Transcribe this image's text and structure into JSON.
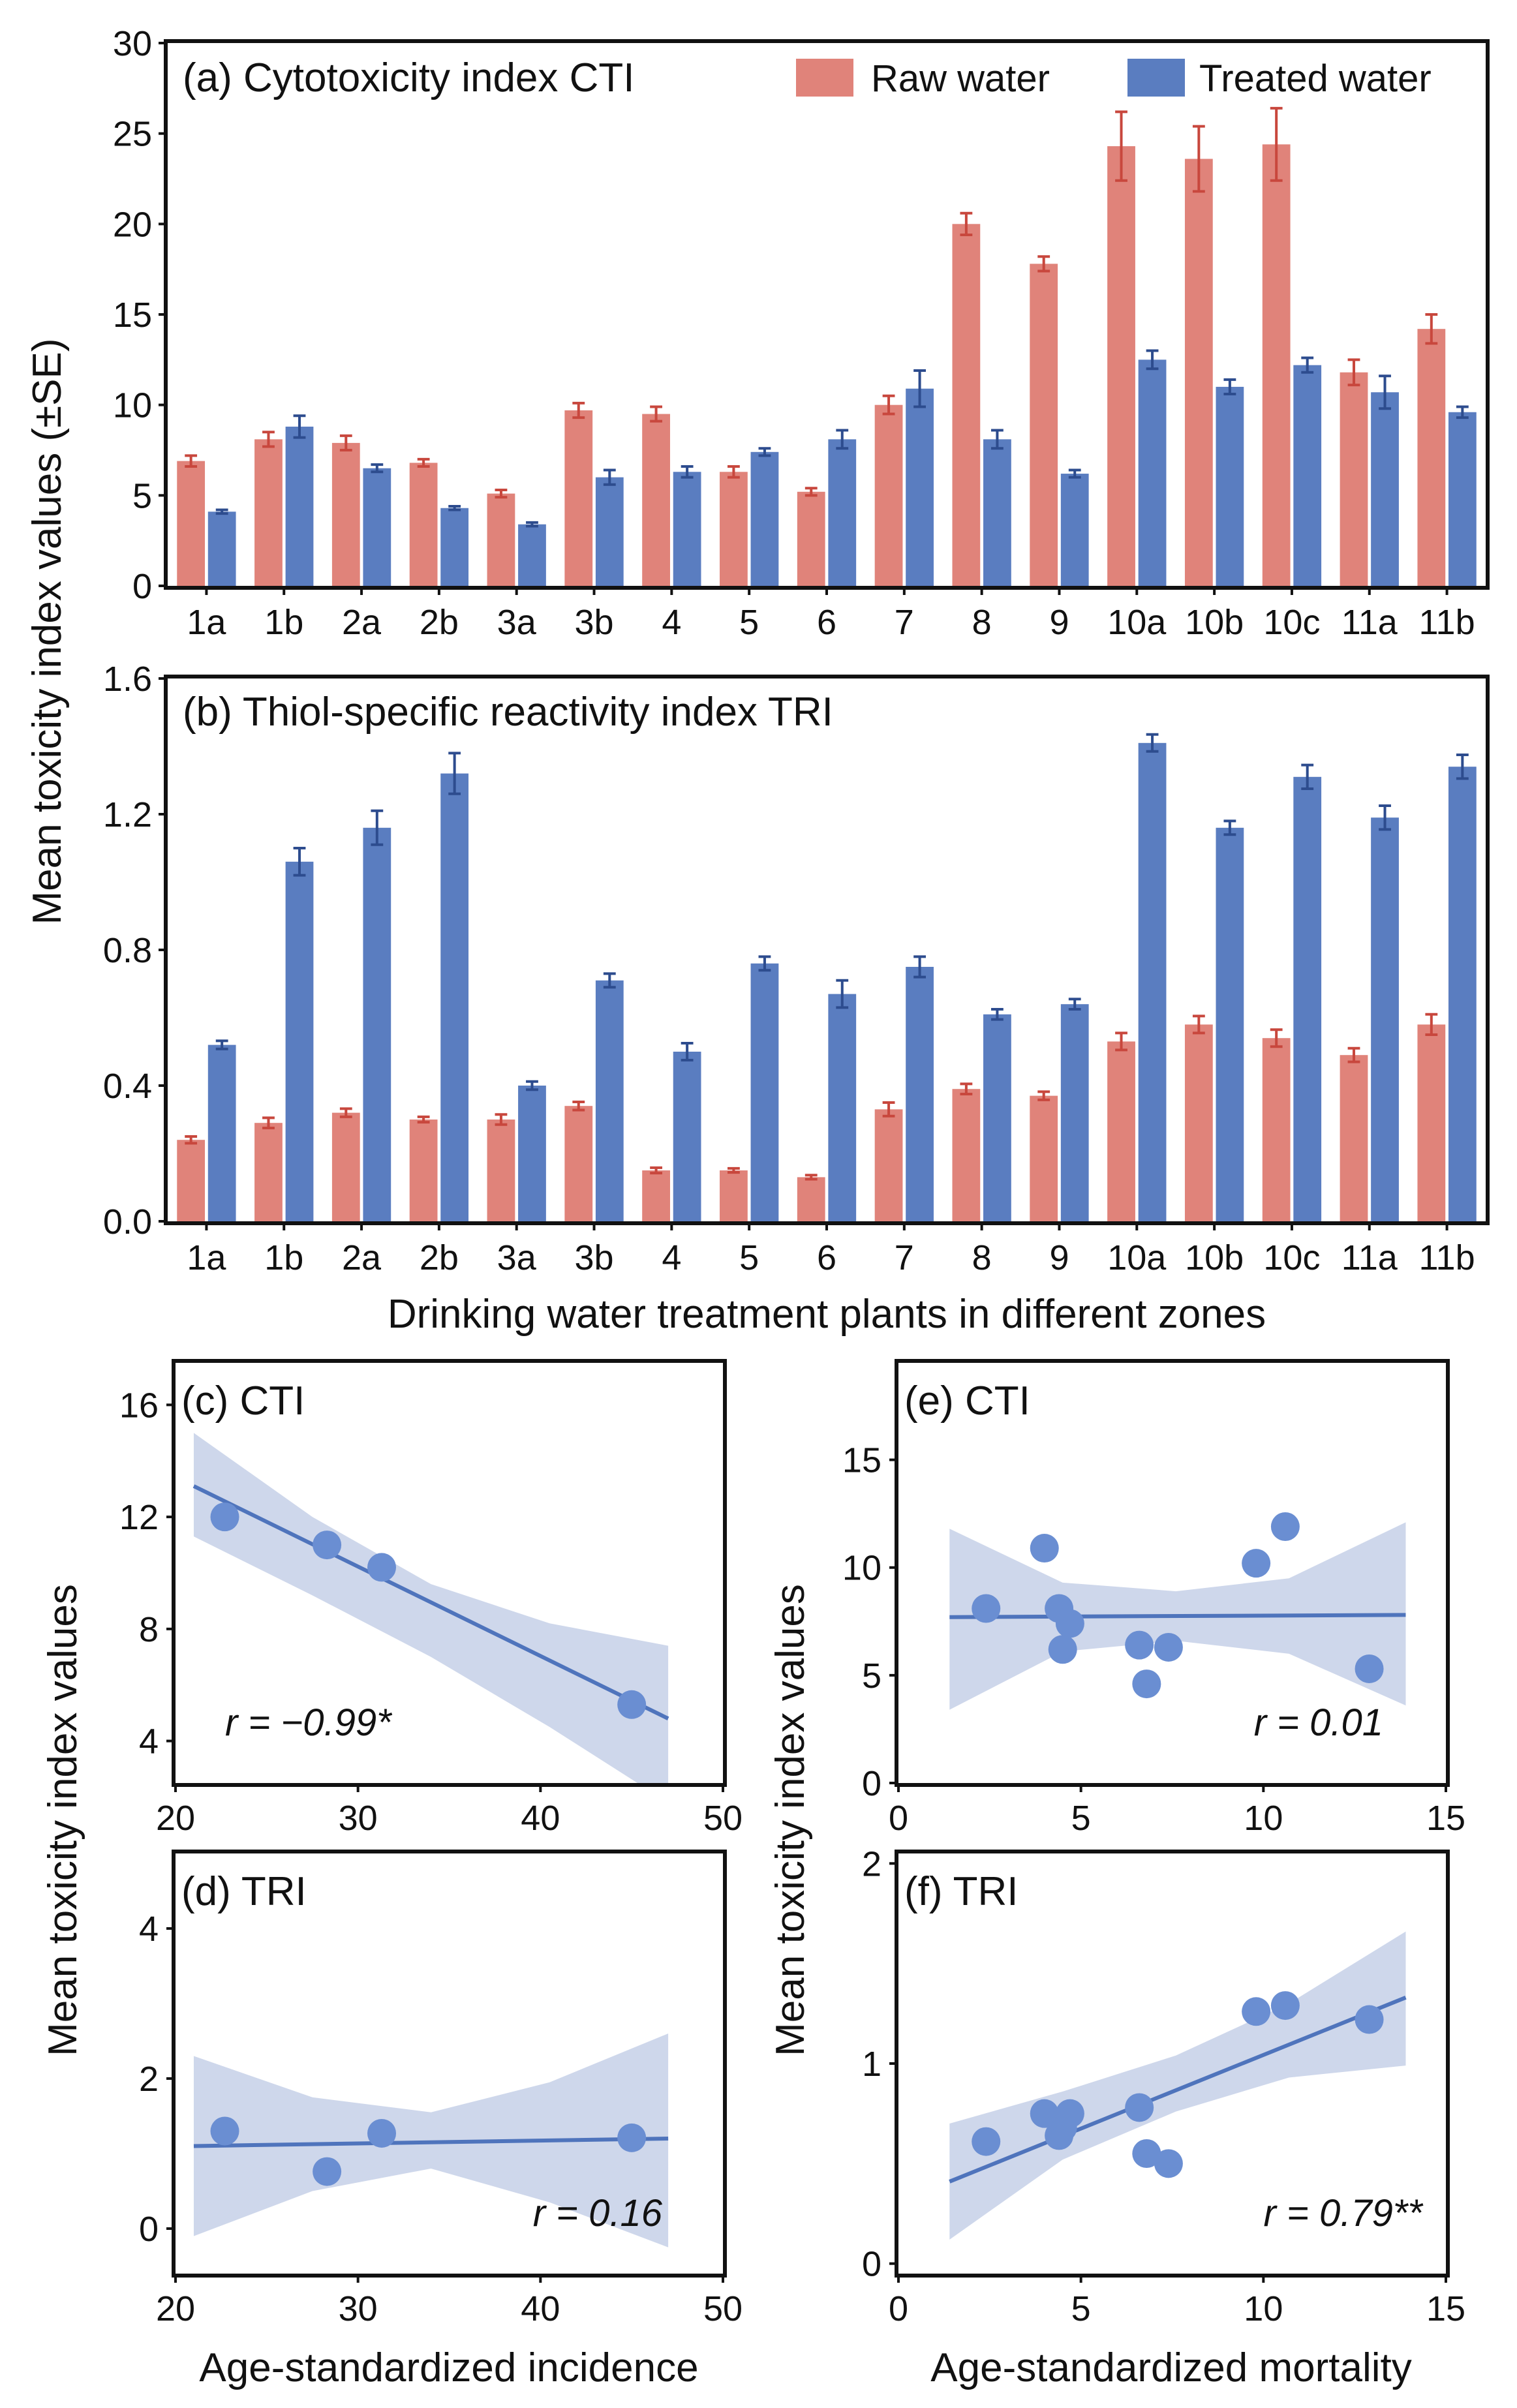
{
  "colors": {
    "raw": "#E0837A",
    "treated": "#5A7DC0",
    "raw_err": "#C8473D",
    "treated_err": "#2D4C8E",
    "band": "#C5D0E7",
    "point": "#6A8ED2",
    "line": "#4F74BC"
  },
  "chart_data": [
    {
      "id": "a",
      "type": "bar",
      "title": "(a) Cytotoxicity index CTI",
      "ylabel": "Mean toxicity index values (±SE)",
      "xlabel": "",
      "ylim": [
        0,
        30
      ],
      "yticks": [
        0,
        5,
        10,
        15,
        20,
        25,
        30
      ],
      "categories": [
        "1a",
        "1b",
        "2a",
        "2b",
        "3a",
        "3b",
        "4",
        "5",
        "6",
        "7",
        "8",
        "9",
        "10a",
        "10b",
        "10c",
        "11a",
        "11b"
      ],
      "legend": [
        "Raw water",
        "Treated water"
      ],
      "series": [
        {
          "name": "Raw water",
          "values": [
            6.9,
            8.1,
            7.9,
            6.8,
            5.1,
            9.7,
            9.5,
            6.3,
            5.2,
            10.0,
            20.0,
            17.8,
            24.3,
            23.6,
            24.4,
            11.8,
            14.2
          ],
          "errors": [
            0.3,
            0.4,
            0.4,
            0.2,
            0.2,
            0.4,
            0.4,
            0.3,
            0.2,
            0.5,
            0.6,
            0.4,
            1.9,
            1.8,
            2.0,
            0.7,
            0.8
          ]
        },
        {
          "name": "Treated water",
          "values": [
            4.1,
            8.8,
            6.5,
            4.3,
            3.4,
            6.0,
            6.3,
            7.4,
            8.1,
            10.9,
            8.1,
            6.2,
            12.5,
            11.0,
            12.2,
            10.7,
            9.6
          ],
          "errors": [
            0.1,
            0.6,
            0.2,
            0.1,
            0.1,
            0.4,
            0.3,
            0.2,
            0.5,
            1.0,
            0.5,
            0.2,
            0.5,
            0.4,
            0.4,
            0.9,
            0.3
          ]
        }
      ]
    },
    {
      "id": "b",
      "type": "bar",
      "title": "(b) Thiol-specific reactivity index TRI",
      "xlabel": "Drinking water treatment plants in different zones",
      "ylabel": "",
      "ylim": [
        0,
        1.6
      ],
      "yticks": [
        "0.0",
        "0.4",
        "0.8",
        "1.2",
        "1.6"
      ],
      "categories": [
        "1a",
        "1b",
        "2a",
        "2b",
        "3a",
        "3b",
        "4",
        "5",
        "6",
        "7",
        "8",
        "9",
        "10a",
        "10b",
        "10c",
        "11a",
        "11b"
      ],
      "series": [
        {
          "name": "Raw water",
          "values": [
            0.24,
            0.29,
            0.32,
            0.3,
            0.3,
            0.34,
            0.15,
            0.15,
            0.13,
            0.33,
            0.39,
            0.37,
            0.53,
            0.58,
            0.54,
            0.49,
            0.58
          ],
          "errors": [
            0.01,
            0.015,
            0.012,
            0.008,
            0.015,
            0.012,
            0.008,
            0.006,
            0.006,
            0.02,
            0.015,
            0.012,
            0.025,
            0.025,
            0.025,
            0.02,
            0.03
          ]
        },
        {
          "name": "Treated water",
          "values": [
            0.52,
            1.06,
            1.16,
            1.32,
            0.4,
            0.71,
            0.5,
            0.76,
            0.67,
            0.75,
            0.61,
            0.64,
            1.41,
            1.16,
            1.31,
            1.19,
            1.34
          ],
          "errors": [
            0.012,
            0.04,
            0.05,
            0.06,
            0.012,
            0.02,
            0.025,
            0.02,
            0.04,
            0.03,
            0.015,
            0.015,
            0.025,
            0.02,
            0.035,
            0.035,
            0.035
          ]
        }
      ]
    },
    {
      "id": "c",
      "type": "scatter",
      "title": "(c) CTI",
      "xlim": [
        20,
        50
      ],
      "ylim": [
        2.5,
        17.5
      ],
      "xticks": [
        20,
        30,
        40,
        50
      ],
      "yticks": [
        4,
        8,
        12,
        16
      ],
      "x": [
        22.7,
        28.3,
        31.3,
        45.0
      ],
      "y": [
        12.0,
        11.0,
        10.2,
        5.3
      ],
      "fit": {
        "x": [
          21.0,
          47.0
        ],
        "y": [
          13.1,
          4.8
        ]
      },
      "band": {
        "x": [
          21.0,
          27.5,
          34.0,
          40.5,
          47.0
        ],
        "lower": [
          11.3,
          9.2,
          7.0,
          4.5,
          1.8
        ],
        "upper": [
          15.0,
          12.0,
          9.6,
          8.2,
          7.4
        ]
      },
      "annotation": "r = −0.99*"
    },
    {
      "id": "d",
      "type": "scatter",
      "title": "(d) TRI",
      "xlabel": "Age-standardized incidence",
      "xlim": [
        20,
        50
      ],
      "ylim": [
        -0.6,
        5.0
      ],
      "xticks": [
        20,
        30,
        40,
        50
      ],
      "yticks": [
        0,
        2,
        4
      ],
      "x": [
        22.7,
        28.3,
        31.3,
        45.0
      ],
      "y": [
        1.3,
        0.76,
        1.27,
        1.21
      ],
      "fit": {
        "x": [
          21.0,
          47.0
        ],
        "y": [
          1.1,
          1.2
        ]
      },
      "band": {
        "x": [
          21.0,
          27.5,
          34.0,
          40.5,
          47.0
        ],
        "lower": [
          -0.1,
          0.5,
          0.8,
          0.35,
          -0.25
        ],
        "upper": [
          2.3,
          1.75,
          1.55,
          1.95,
          2.6
        ]
      },
      "annotation": "r = 0.16"
    },
    {
      "id": "e",
      "type": "scatter",
      "title": "(e) CTI",
      "xlim": [
        0,
        15
      ],
      "ylim": [
        0,
        19.5
      ],
      "xticks": [
        0,
        5,
        10,
        15
      ],
      "yticks": [
        0,
        5,
        10,
        15
      ],
      "x": [
        2.4,
        4.0,
        4.4,
        4.5,
        4.7,
        6.6,
        6.8,
        7.4,
        9.8,
        10.6,
        12.9
      ],
      "y": [
        8.1,
        10.9,
        8.1,
        6.2,
        7.4,
        6.4,
        4.6,
        6.3,
        10.2,
        11.9,
        5.3
      ],
      "fit": {
        "x": [
          1.4,
          13.9
        ],
        "y": [
          7.7,
          7.8
        ]
      },
      "band": {
        "x": [
          1.4,
          4.5,
          7.6,
          10.7,
          13.9
        ],
        "lower": [
          3.4,
          6.1,
          6.6,
          6.0,
          3.6
        ],
        "upper": [
          11.8,
          9.3,
          8.9,
          9.5,
          12.1
        ]
      },
      "annotation": "r = 0.01"
    },
    {
      "id": "f",
      "type": "scatter",
      "title": "(f) TRI",
      "xlabel": "Age-standardized mortality",
      "xlim": [
        0,
        15
      ],
      "ylim": [
        -0.05,
        2.05
      ],
      "xticks": [
        0,
        5,
        10,
        15
      ],
      "yticks": [
        0,
        1,
        2
      ],
      "x": [
        2.4,
        4.0,
        4.4,
        4.5,
        4.7,
        6.6,
        6.8,
        7.4,
        9.8,
        10.6,
        12.9
      ],
      "y": [
        0.61,
        0.75,
        0.64,
        0.68,
        0.75,
        0.78,
        0.55,
        0.5,
        1.26,
        1.29,
        1.22
      ],
      "fit": {
        "x": [
          1.4,
          13.9
        ],
        "y": [
          0.41,
          1.33
        ]
      },
      "band": {
        "x": [
          1.4,
          4.5,
          7.6,
          10.7,
          13.9
        ],
        "lower": [
          0.12,
          0.52,
          0.76,
          0.93,
          0.99
        ],
        "upper": [
          0.7,
          0.86,
          1.04,
          1.3,
          1.66
        ]
      },
      "annotation": "r = 0.79**"
    }
  ],
  "shared_ylabel": "Mean toxicity index values"
}
